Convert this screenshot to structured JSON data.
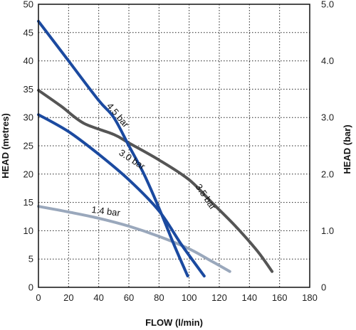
{
  "chart_data": {
    "type": "line",
    "xlabel": "FLOW (l/min)",
    "ylabel": "HEAD (metres)",
    "ylabel_right": "HEAD (bar)",
    "xlim": [
      0,
      180
    ],
    "ylim": [
      0,
      50
    ],
    "ylim_right": [
      0,
      5
    ],
    "x_ticks": [
      "0",
      "20",
      "40",
      "60",
      "80",
      "100",
      "120",
      "140",
      "160",
      "180"
    ],
    "y_ticks": [
      "0",
      "5",
      "10",
      "15",
      "20",
      "25",
      "30",
      "35",
      "40",
      "45",
      "50"
    ],
    "y_ticks_right": [
      "0",
      "1.0",
      "2.0",
      "3.0",
      "4.0",
      "5.0"
    ],
    "grid": true,
    "series": [
      {
        "name": "4.5 bar",
        "color": "#1b4aa0",
        "points": [
          [
            0,
            47
          ],
          [
            20,
            40
          ],
          [
            40,
            33
          ],
          [
            50,
            30
          ],
          [
            60,
            25
          ],
          [
            70,
            20
          ],
          [
            80,
            14
          ],
          [
            90,
            7.5
          ],
          [
            99,
            2
          ]
        ]
      },
      {
        "name": "3.0 bar",
        "color": "#1b4aa0",
        "points": [
          [
            0,
            30.5
          ],
          [
            20,
            27.5
          ],
          [
            40,
            23.5
          ],
          [
            60,
            19
          ],
          [
            80,
            13.5
          ],
          [
            95,
            7.5
          ],
          [
            110,
            2
          ]
        ]
      },
      {
        "name": "3.5 bar",
        "color": "#555555",
        "points": [
          [
            0,
            34.8
          ],
          [
            15,
            32
          ],
          [
            30,
            29
          ],
          [
            50,
            27
          ],
          [
            60,
            25.5
          ],
          [
            80,
            22.5
          ],
          [
            100,
            19
          ],
          [
            115,
            15
          ],
          [
            130,
            11
          ],
          [
            145,
            6.5
          ],
          [
            155,
            2.8
          ]
        ]
      },
      {
        "name": "1.4 bar",
        "color": "#9aa8bc",
        "points": [
          [
            0,
            14.3
          ],
          [
            20,
            13.3
          ],
          [
            40,
            12.2
          ],
          [
            60,
            10.8
          ],
          [
            80,
            9
          ],
          [
            100,
            6.8
          ],
          [
            115,
            4.6
          ],
          [
            127,
            2.8
          ]
        ]
      }
    ]
  }
}
